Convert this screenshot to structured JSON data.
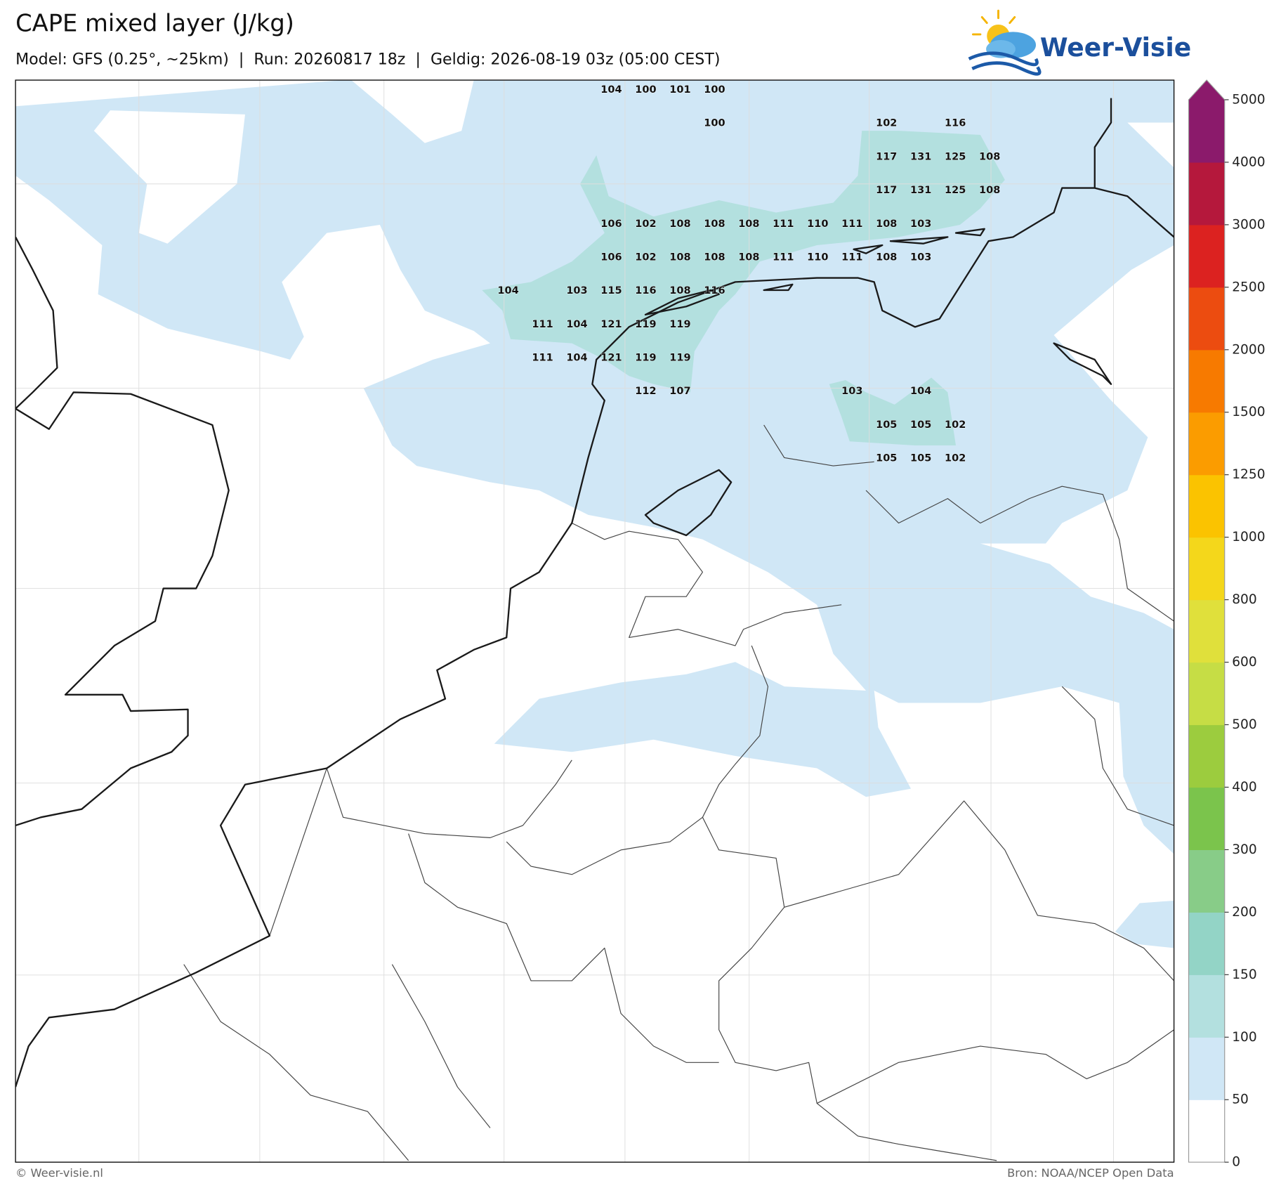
{
  "header": {
    "title": "CAPE mixed layer (J/kg)",
    "subtitle": "Model: GFS (0.25°, ~25km)  |  Run: 20260817 18z  |  Geldig: 2026-08-19 03z (05:00 CEST)",
    "logo": "Weer-Visie"
  },
  "map": {
    "values": [
      [
        null,
        null,
        null,
        104,
        100,
        101,
        100,
        null,
        null,
        null,
        null,
        null,
        null,
        null,
        null
      ],
      [
        null,
        null,
        null,
        null,
        null,
        null,
        100,
        null,
        null,
        null,
        null,
        102,
        null,
        116,
        null
      ],
      [
        null,
        null,
        null,
        null,
        null,
        null,
        null,
        null,
        null,
        null,
        null,
        117,
        131,
        125,
        108
      ],
      [
        null,
        null,
        null,
        null,
        null,
        null,
        null,
        null,
        null,
        null,
        null,
        117,
        131,
        125,
        108
      ],
      [
        null,
        null,
        null,
        106,
        102,
        108,
        108,
        108,
        111,
        110,
        111,
        108,
        103,
        null,
        null
      ],
      [
        null,
        null,
        null,
        106,
        102,
        108,
        108,
        108,
        111,
        110,
        111,
        108,
        103,
        null,
        null
      ],
      [
        104,
        null,
        103,
        115,
        116,
        108,
        116,
        null,
        null,
        null,
        null,
        null,
        null,
        null,
        null
      ],
      [
        null,
        111,
        104,
        121,
        119,
        119,
        null,
        null,
        null,
        null,
        null,
        null,
        null,
        null,
        null
      ],
      [
        null,
        111,
        104,
        121,
        119,
        119,
        null,
        null,
        null,
        null,
        null,
        null,
        null,
        null,
        null
      ],
      [
        null,
        null,
        null,
        null,
        112,
        107,
        null,
        null,
        null,
        null,
        103,
        null,
        104,
        null,
        null
      ],
      [
        null,
        null,
        null,
        null,
        null,
        null,
        null,
        null,
        null,
        null,
        null,
        105,
        105,
        102,
        null
      ],
      [
        null,
        null,
        null,
        null,
        null,
        null,
        null,
        null,
        null,
        null,
        null,
        105,
        105,
        102,
        null
      ]
    ]
  },
  "colorbar": {
    "ticks": [
      0,
      50,
      100,
      150,
      200,
      300,
      400,
      500,
      600,
      800,
      1000,
      1250,
      1500,
      2000,
      2500,
      3000,
      4000,
      5000
    ],
    "colors": [
      "#ffffff",
      "#d0e7f6",
      "#b3e0df",
      "#93d4c6",
      "#88cc88",
      "#7bc44c",
      "#9ccc3e",
      "#c6dd45",
      "#e0e03b",
      "#f4d71b",
      "#fbc300",
      "#fb9c00",
      "#f77a00",
      "#ec4c10",
      "#dc2220",
      "#b5183c",
      "#8b1a6b"
    ],
    "extend_color": "#8b1a6b"
  },
  "footer": {
    "left": "© Weer-visie.nl",
    "right": "Bron: NOAA/NCEP Open Data"
  }
}
